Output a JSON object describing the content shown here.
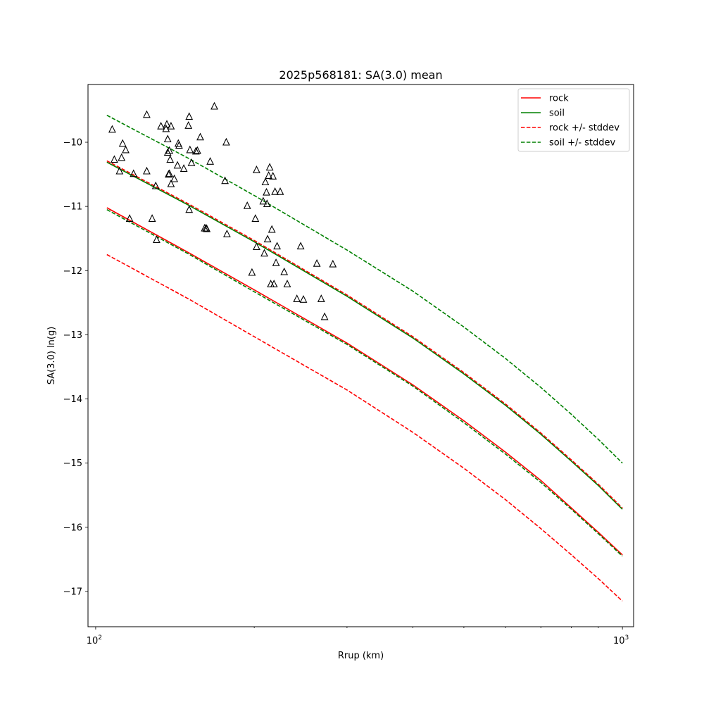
{
  "chart_data": {
    "type": "line",
    "title": "2025p568181: SA(3.0) mean",
    "xlabel": "Rrup (km)",
    "ylabel": "SA(3.0) ln(g)",
    "x_scale": "log",
    "xlim": [
      96.7,
      1050
    ],
    "ylim": [
      -17.55,
      -9.1
    ],
    "grid": false,
    "legend_position": "top-right",
    "x_ticks": [
      {
        "value": 100,
        "base": "10",
        "exp": "2"
      },
      {
        "value": 1000,
        "base": "10",
        "exp": "3"
      }
    ],
    "x_minor_ticks": [
      200,
      300,
      400,
      500,
      600,
      700,
      800,
      900
    ],
    "y_ticks": [
      {
        "value": -10,
        "label": "−10"
      },
      {
        "value": -11,
        "label": "−11"
      },
      {
        "value": -12,
        "label": "−12"
      },
      {
        "value": -13,
        "label": "−13"
      },
      {
        "value": -14,
        "label": "−14"
      },
      {
        "value": -15,
        "label": "−15"
      },
      {
        "value": -16,
        "label": "−16"
      },
      {
        "value": -17,
        "label": "−17"
      }
    ],
    "series": [
      {
        "name": "rock",
        "color": "#ff0000",
        "dash": "solid",
        "x": [
          105,
          150,
          200,
          300,
          400,
          500,
          600,
          700,
          800,
          900,
          1000
        ],
        "y": [
          -11.02,
          -11.72,
          -12.3,
          -13.13,
          -13.78,
          -14.34,
          -14.83,
          -15.27,
          -15.7,
          -16.08,
          -16.43
        ]
      },
      {
        "name": "soil",
        "color": "#008000",
        "dash": "solid",
        "x": [
          105,
          150,
          200,
          300,
          400,
          500,
          600,
          700,
          800,
          900,
          1000
        ],
        "y": [
          -10.31,
          -10.98,
          -11.55,
          -12.4,
          -13.05,
          -13.61,
          -14.1,
          -14.55,
          -14.97,
          -15.35,
          -15.72
        ]
      },
      {
        "name": "rock +/- stddev",
        "color": "#ff0000",
        "dash": "dashed",
        "x": [
          105,
          150,
          200,
          300,
          400,
          500,
          600,
          700,
          800,
          900,
          1000
        ],
        "y": [
          -10.29,
          -10.96,
          -11.53,
          -12.38,
          -13.03,
          -13.59,
          -14.08,
          -14.53,
          -14.95,
          -15.33,
          -15.7
        ]
      },
      {
        "name": "",
        "color": "#ff0000",
        "dash": "dashed",
        "x": [
          105,
          150,
          200,
          300,
          400,
          500,
          600,
          700,
          800,
          900,
          1000
        ],
        "y": [
          -11.75,
          -12.44,
          -13.03,
          -13.86,
          -14.52,
          -15.08,
          -15.57,
          -16.02,
          -16.43,
          -16.8,
          -17.15
        ]
      },
      {
        "name": "soil +/- stddev",
        "color": "#008000",
        "dash": "dashed",
        "x": [
          105,
          150,
          200,
          300,
          400,
          500,
          600,
          700,
          800,
          900,
          1000
        ],
        "y": [
          -9.58,
          -10.25,
          -10.83,
          -11.68,
          -12.32,
          -12.88,
          -13.37,
          -13.82,
          -14.24,
          -14.63,
          -15.0
        ]
      },
      {
        "name": "",
        "color": "#008000",
        "dash": "dashed",
        "x": [
          105,
          150,
          200,
          300,
          400,
          500,
          600,
          700,
          800,
          900,
          1000
        ],
        "y": [
          -11.05,
          -11.74,
          -12.33,
          -13.15,
          -13.8,
          -14.37,
          -14.86,
          -15.3,
          -15.72,
          -16.1,
          -16.45
        ]
      }
    ],
    "observations": {
      "marker": "triangle",
      "x": [
        107.5,
        108.5,
        111,
        112,
        112.5,
        114,
        116,
        118,
        125,
        125,
        128,
        130,
        130.5,
        133,
        136,
        136.5,
        137,
        137,
        137.5,
        138,
        138,
        138.5,
        139,
        139,
        141,
        143,
        143.5,
        144,
        147,
        150,
        150.5,
        150.5,
        151,
        152,
        155,
        156,
        158,
        161,
        162,
        162.5,
        165,
        168,
        176,
        177,
        177.5,
        194,
        198,
        201,
        202,
        202,
        208,
        209,
        210,
        211,
        211.5,
        212,
        213,
        214,
        215,
        216,
        217,
        218,
        219,
        220,
        221,
        224,
        228,
        231,
        241,
        245,
        248,
        263,
        268,
        272,
        282
      ],
      "y": [
        -9.8,
        -10.27,
        -10.45,
        -10.24,
        -10.02,
        -10.12,
        -11.19,
        -10.49,
        -9.57,
        -10.45,
        -11.19,
        -10.68,
        -11.52,
        -9.75,
        -9.79,
        -9.72,
        -10.16,
        -9.95,
        -10.5,
        -10.49,
        -10.13,
        -10.27,
        -9.75,
        -10.65,
        -10.57,
        -10.36,
        -10.02,
        -10.05,
        -10.41,
        -9.74,
        -11.05,
        -9.6,
        -10.12,
        -10.32,
        -10.14,
        -10.13,
        -9.92,
        -11.34,
        -11.34,
        -11.35,
        -10.3,
        -9.44,
        -10.6,
        -10.0,
        -11.43,
        -10.99,
        -12.03,
        -11.19,
        -11.63,
        -10.43,
        -10.92,
        -11.73,
        -10.62,
        -10.78,
        -10.96,
        -11.51,
        -10.52,
        -10.39,
        -12.21,
        -11.36,
        -10.53,
        -12.21,
        -10.77,
        -11.88,
        -11.62,
        -10.77,
        -12.02,
        -12.21,
        -12.44,
        -11.62,
        -12.45,
        -11.89,
        -12.44,
        -12.72,
        -11.9
      ]
    },
    "legend": [
      {
        "label": "rock",
        "color": "#ff0000",
        "dash": "solid"
      },
      {
        "label": "soil",
        "color": "#008000",
        "dash": "solid"
      },
      {
        "label": "rock +/- stddev",
        "color": "#ff0000",
        "dash": "dashed"
      },
      {
        "label": "soil +/- stddev",
        "color": "#008000",
        "dash": "dashed"
      }
    ]
  }
}
